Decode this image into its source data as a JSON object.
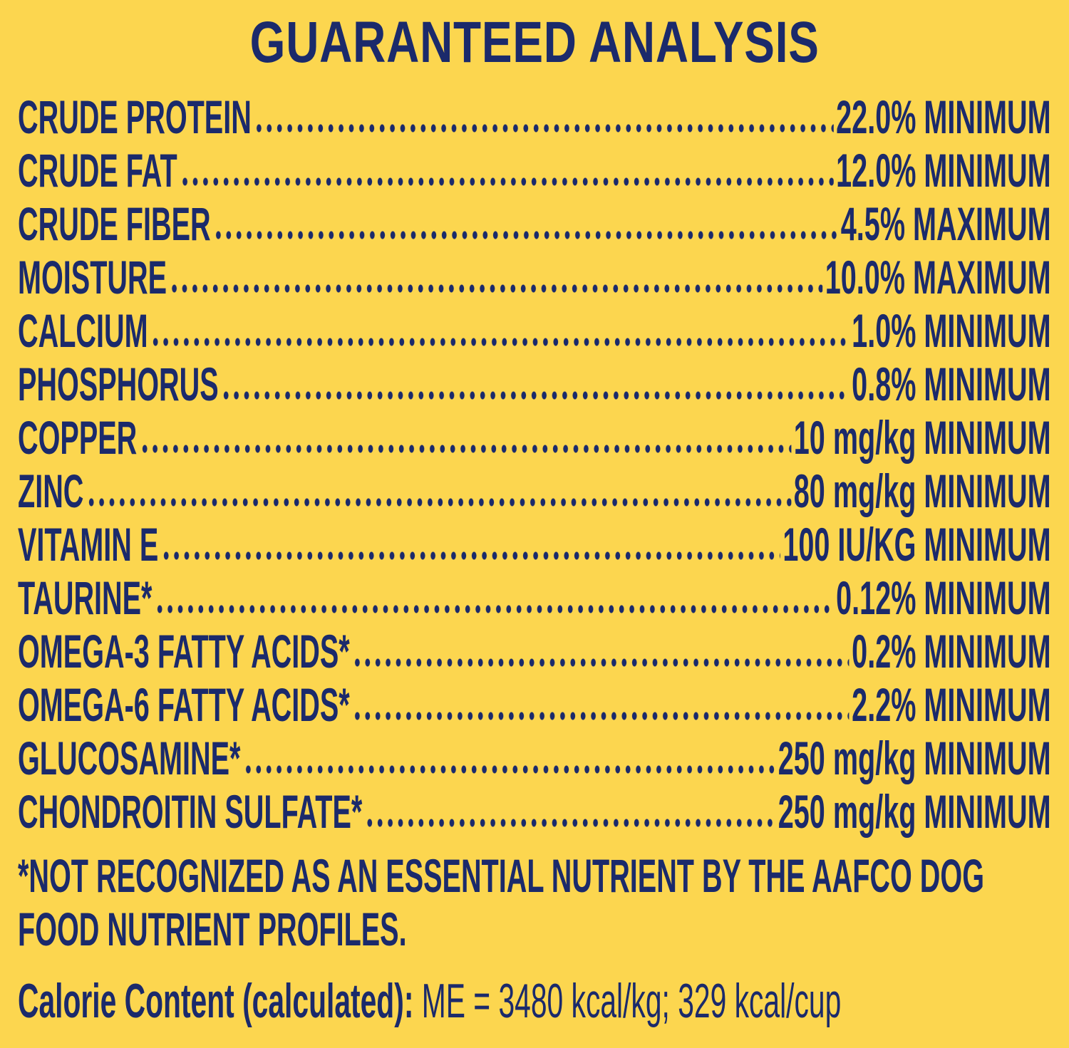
{
  "title": "GUARANTEED ANALYSIS",
  "rows": [
    {
      "name": "CRUDE PROTEIN",
      "value": "22.0% MINIMUM"
    },
    {
      "name": "CRUDE FAT",
      "value": "12.0% MINIMUM"
    },
    {
      "name": "CRUDE FIBER",
      "value": "4.5% MAXIMUM"
    },
    {
      "name": "MOISTURE",
      "value": "10.0% MAXIMUM"
    },
    {
      "name": "CALCIUM",
      "value": "1.0% MINIMUM"
    },
    {
      "name": "PHOSPHORUS",
      "value": "0.8% MINIMUM"
    },
    {
      "name": "COPPER",
      "value": "10 mg/kg MINIMUM"
    },
    {
      "name": "ZINC",
      "value": "80 mg/kg MINIMUM"
    },
    {
      "name": "VITAMIN E",
      "value": "100 IU/KG MINIMUM"
    },
    {
      "name": "TAURINE*",
      "value": "0.12% MINIMUM"
    },
    {
      "name": "OMEGA-3 FATTY ACIDS*",
      "value": "0.2% MINIMUM"
    },
    {
      "name": "OMEGA-6 FATTY ACIDS*",
      "value": "2.2% MINIMUM"
    },
    {
      "name": "GLUCOSAMINE*",
      "value": "250 mg/kg MINIMUM"
    },
    {
      "name": "CHONDROITIN SULFATE*",
      "value": "250 mg/kg MINIMUM"
    }
  ],
  "footnote": "*NOT RECOGNIZED AS AN ESSENTIAL NUTRIENT BY THE AAFCO DOG FOOD NUTRIENT PROFILES.",
  "calorie": {
    "label": "Calorie Content (calculated):",
    "value": "ME = 3480 kcal/kg; 329 kcal/cup"
  }
}
